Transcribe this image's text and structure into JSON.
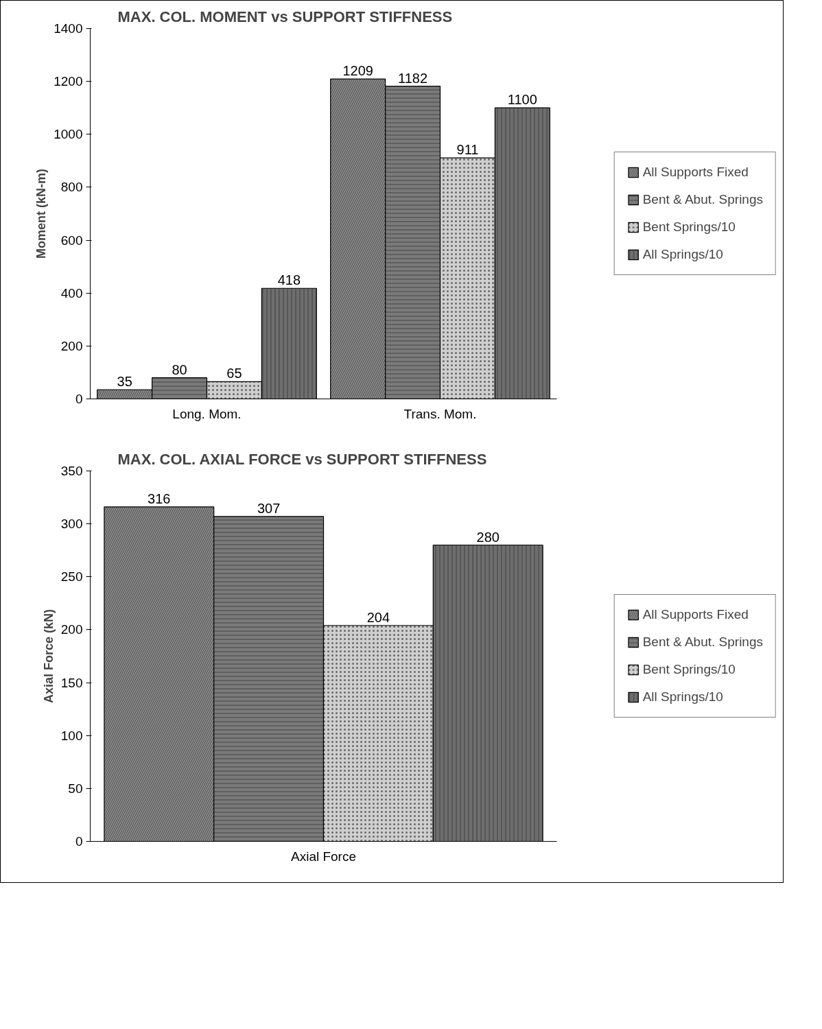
{
  "chart_data": [
    {
      "type": "bar",
      "title": "MAX. COL. MOMENT vs SUPPORT STIFFNESS",
      "ylabel": "Moment (kN-m)",
      "categories": [
        "Long. Mom.",
        "Trans. Mom."
      ],
      "series": [
        {
          "name": "All Supports Fixed",
          "color": "#8c8c8c",
          "values": [
            35,
            1209
          ]
        },
        {
          "name": "Bent & Abut. Springs",
          "color": "#7a7a7a",
          "values": [
            80,
            1182
          ]
        },
        {
          "name": "Bent Springs/10",
          "color": "#cfcfcf",
          "values": [
            65,
            911
          ]
        },
        {
          "name": "All Springs/10",
          "color": "#6e6e6e",
          "values": [
            418,
            1100
          ]
        }
      ],
      "ylim": [
        0,
        1400
      ],
      "yticks": [
        0,
        200,
        400,
        600,
        800,
        1000,
        1200,
        1400
      ],
      "data_labels": true,
      "legend": "right",
      "grid": false
    },
    {
      "type": "bar",
      "title": "MAX. COL. AXIAL FORCE vs SUPPORT STIFFNESS",
      "ylabel": "Axial Force (kN)",
      "categories": [
        "Axial Force"
      ],
      "series": [
        {
          "name": "All Supports Fixed",
          "color": "#8c8c8c",
          "values": [
            316
          ]
        },
        {
          "name": "Bent & Abut. Springs",
          "color": "#7a7a7a",
          "values": [
            307
          ]
        },
        {
          "name": "Bent Springs/10",
          "color": "#cfcfcf",
          "values": [
            204
          ]
        },
        {
          "name": "All Springs/10",
          "color": "#6e6e6e",
          "values": [
            280
          ]
        }
      ],
      "ylim": [
        0,
        350
      ],
      "yticks": [
        0,
        50,
        100,
        150,
        200,
        250,
        300,
        350
      ],
      "data_labels": true,
      "legend": "right",
      "grid": false
    }
  ]
}
